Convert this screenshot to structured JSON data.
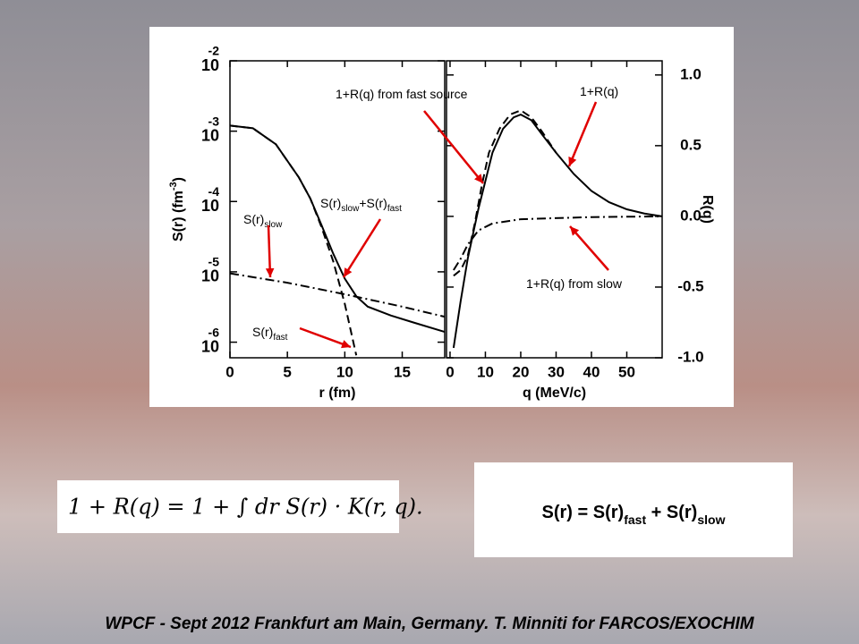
{
  "chart_data": [
    {
      "type": "line",
      "xlabel": "r (fm)",
      "ylabel": [
        {
          "t": "S(r) (fm"
        },
        {
          "sup": "-3"
        },
        {
          "t": ")"
        }
      ],
      "xlim": [
        0,
        18.7
      ],
      "xticks": [
        0,
        5,
        10,
        15
      ],
      "yscale": "log",
      "ylim": [
        6e-07,
        0.01
      ],
      "yticks": [
        {
          "value": 0.01,
          "label": "10",
          "sup": "-2"
        },
        {
          "value": 0.001,
          "label": "10",
          "sup": "-3"
        },
        {
          "value": 0.0001,
          "label": "10",
          "sup": "-4"
        },
        {
          "value": 1e-05,
          "label": "10",
          "sup": "-5"
        },
        {
          "value": 1e-06,
          "label": "10",
          "sup": "-6"
        }
      ],
      "series": [
        {
          "color": "#000000",
          "dash": "solid",
          "x": [
            0,
            2,
            4,
            6,
            7,
            8,
            9,
            10,
            11,
            12,
            14,
            16,
            18.7
          ],
          "values": [
            0.0012,
            0.0011,
            0.00065,
            0.00022,
            0.00011,
            4.5e-05,
            1.8e-05,
            8e-06,
            4.5e-06,
            3.2e-06,
            2.4e-06,
            1.9e-06,
            1.4e-06
          ]
        },
        {
          "color": "#000000",
          "dash": "dashed",
          "x": [
            0,
            2,
            4,
            6,
            7,
            8,
            9,
            10,
            11
          ],
          "values": [
            0.0012,
            0.0011,
            0.00065,
            0.00022,
            0.00011,
            4.2e-05,
            1.4e-05,
            3.5e-06,
            6.5e-07
          ]
        },
        {
          "color": "#000000",
          "dash": "dashdot",
          "x": [
            0,
            5,
            10,
            15,
            18.7
          ],
          "values": [
            9.5e-06,
            7e-06,
            4.8e-06,
            3.2e-06,
            2.3e-06
          ]
        }
      ],
      "annotations": [
        {
          "parts": [
            {
              "t": "S(r)"
            },
            {
              "sub": "slow"
            }
          ]
        },
        {
          "parts": [
            {
              "t": "S(r)"
            },
            {
              "sub": "slow"
            },
            {
              "t": "+S(r)"
            },
            {
              "sub": "fast"
            }
          ]
        },
        {
          "parts": [
            {
              "t": "S(r)"
            },
            {
              "sub": "fast"
            }
          ]
        }
      ]
    },
    {
      "type": "line",
      "xlabel": "q (MeV/c)",
      "ylabel": [
        {
          "t": "R(q)"
        }
      ],
      "xlim": [
        -1,
        60
      ],
      "xticks": [
        0,
        10,
        20,
        30,
        40,
        50
      ],
      "ylim": [
        -1.0,
        1.1
      ],
      "yticks": [
        {
          "value": 1,
          "label": "1.0"
        },
        0.5,
        {
          "value": 0,
          "label": "0.0"
        },
        -0.5,
        {
          "value": -1,
          "label": "-1.0"
        }
      ],
      "series": [
        {
          "color": "#000000",
          "dash": "solid",
          "x": [
            1,
            3,
            5,
            8,
            10,
            12,
            15,
            18,
            20,
            23,
            26,
            30,
            35,
            40,
            45,
            50,
            55,
            60
          ],
          "values": [
            -0.93,
            -0.6,
            -0.3,
            0.05,
            0.25,
            0.45,
            0.62,
            0.7,
            0.72,
            0.68,
            0.58,
            0.45,
            0.3,
            0.18,
            0.1,
            0.05,
            0.02,
            0
          ]
        },
        {
          "color": "#000000",
          "dash": "dashed",
          "x": [
            1,
            3,
            5,
            7,
            9,
            11,
            14,
            17,
            20,
            23,
            26,
            30
          ],
          "values": [
            -0.42,
            -0.38,
            -0.28,
            -0.05,
            0.22,
            0.45,
            0.62,
            0.72,
            0.75,
            0.7,
            0.6,
            0.45
          ]
        },
        {
          "color": "#000000",
          "dash": "dashdot",
          "x": [
            1,
            3,
            5,
            8,
            12,
            20,
            40,
            60
          ],
          "values": [
            -0.38,
            -0.3,
            -0.2,
            -0.1,
            -0.05,
            -0.02,
            -0.005,
            0
          ]
        }
      ],
      "annotations": [
        {
          "parts": [
            {
              "t": "1+R(q) from fast source"
            }
          ]
        },
        {
          "parts": [
            {
              "t": "1+R(q)"
            }
          ]
        },
        {
          "parts": [
            {
              "t": "1+R(q) from slow"
            }
          ]
        }
      ]
    }
  ],
  "formula": "1 + R(q) = 1 + ∫ dr S(r) · K(r, q).",
  "sum_box": [
    {
      "t": "S(r) =  S(r)"
    },
    {
      "sub": "fast"
    },
    {
      "t": " + S(r)"
    },
    {
      "sub": "slow"
    }
  ],
  "footer": "WPCF - Sept 2012 Frankfurt am Main, Germany. T. Minniti for FARCOS/EXOCHIM"
}
